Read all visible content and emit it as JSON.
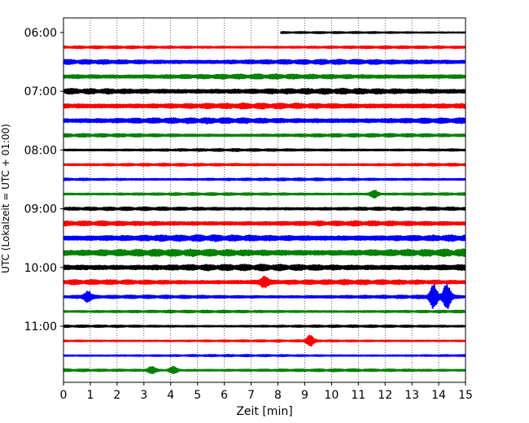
{
  "chart_data": {
    "type": "line",
    "title": "",
    "xlabel": "Zeit  [min]",
    "ylabel": "UTC (Lokalzeit = UTC + 01:00)",
    "xlim": [
      0,
      15
    ],
    "x_ticks": [
      "0",
      "1",
      "2",
      "3",
      "4",
      "5",
      "6",
      "7",
      "8",
      "9",
      "10",
      "11",
      "12",
      "13",
      "14",
      "15"
    ],
    "y_tick_labels": [
      "06:00",
      "07:00",
      "08:00",
      "09:00",
      "10:00",
      "11:00"
    ],
    "grid": "vertical dotted at each minute",
    "colors": [
      "#000000",
      "#ff0000",
      "#0000ff",
      "#008000"
    ],
    "traces": [
      {
        "start": "06:00",
        "color": "#000000",
        "x_start": 8.1,
        "x_end": 15,
        "amplitude": 1.5
      },
      {
        "start": "06:15",
        "color": "#ff0000",
        "x_start": 0,
        "x_end": 15,
        "amplitude": 2.0
      },
      {
        "start": "06:30",
        "color": "#0000ff",
        "x_start": 0,
        "x_end": 15,
        "amplitude": 3.5
      },
      {
        "start": "06:45",
        "color": "#008000",
        "x_start": 0,
        "x_end": 15,
        "amplitude": 3.5
      },
      {
        "start": "07:00",
        "color": "#000000",
        "x_start": 0,
        "x_end": 15,
        "amplitude": 4.0
      },
      {
        "start": "07:15",
        "color": "#ff0000",
        "x_start": 0,
        "x_end": 15,
        "amplitude": 4.0
      },
      {
        "start": "07:30",
        "color": "#0000ff",
        "x_start": 0,
        "x_end": 15,
        "amplitude": 4.0
      },
      {
        "start": "07:45",
        "color": "#008000",
        "x_start": 0,
        "x_end": 15,
        "amplitude": 2.5
      },
      {
        "start": "08:00",
        "color": "#000000",
        "x_start": 0,
        "x_end": 15,
        "amplitude": 2.0
      },
      {
        "start": "08:15",
        "color": "#ff0000",
        "x_start": 0,
        "x_end": 15,
        "amplitude": 2.0
      },
      {
        "start": "08:30",
        "color": "#0000ff",
        "x_start": 0,
        "x_end": 15,
        "amplitude": 2.0
      },
      {
        "start": "08:45",
        "color": "#008000",
        "x_start": 0,
        "x_end": 15,
        "amplitude": 2.0,
        "events": [
          {
            "x": 11.6,
            "amp": 4
          }
        ]
      },
      {
        "start": "09:00",
        "color": "#000000",
        "x_start": 0,
        "x_end": 15,
        "amplitude": 2.5
      },
      {
        "start": "09:15",
        "color": "#ff0000",
        "x_start": 0,
        "x_end": 15,
        "amplitude": 3.5
      },
      {
        "start": "09:30",
        "color": "#0000ff",
        "x_start": 0,
        "x_end": 15,
        "amplitude": 4.5
      },
      {
        "start": "09:45",
        "color": "#008000",
        "x_start": 0,
        "x_end": 15,
        "amplitude": 5.0
      },
      {
        "start": "10:00",
        "color": "#000000",
        "x_start": 0,
        "x_end": 15,
        "amplitude": 4.5
      },
      {
        "start": "10:15",
        "color": "#ff0000",
        "x_start": 0,
        "x_end": 15,
        "amplitude": 3.5,
        "events": [
          {
            "x": 7.5,
            "amp": 6
          }
        ]
      },
      {
        "start": "10:30",
        "color": "#0000ff",
        "x_start": 0,
        "x_end": 15,
        "amplitude": 2.5,
        "events": [
          {
            "x": 0.9,
            "amp": 6
          },
          {
            "x": 13.8,
            "amp": 14
          },
          {
            "x": 14.3,
            "amp": 16
          }
        ]
      },
      {
        "start": "10:45",
        "color": "#008000",
        "x_start": 0,
        "x_end": 15,
        "amplitude": 2.0
      },
      {
        "start": "11:00",
        "color": "#000000",
        "x_start": 0,
        "x_end": 15,
        "amplitude": 1.8
      },
      {
        "start": "11:15",
        "color": "#ff0000",
        "x_start": 0,
        "x_end": 15,
        "amplitude": 1.6,
        "events": [
          {
            "x": 9.2,
            "amp": 6
          }
        ]
      },
      {
        "start": "11:30",
        "color": "#0000ff",
        "x_start": 0,
        "x_end": 15,
        "amplitude": 1.6
      },
      {
        "start": "11:45",
        "color": "#008000",
        "x_start": 0,
        "x_end": 15,
        "amplitude": 2.0,
        "events": [
          {
            "x": 3.3,
            "amp": 4
          },
          {
            "x": 4.1,
            "amp": 4
          }
        ]
      }
    ]
  }
}
